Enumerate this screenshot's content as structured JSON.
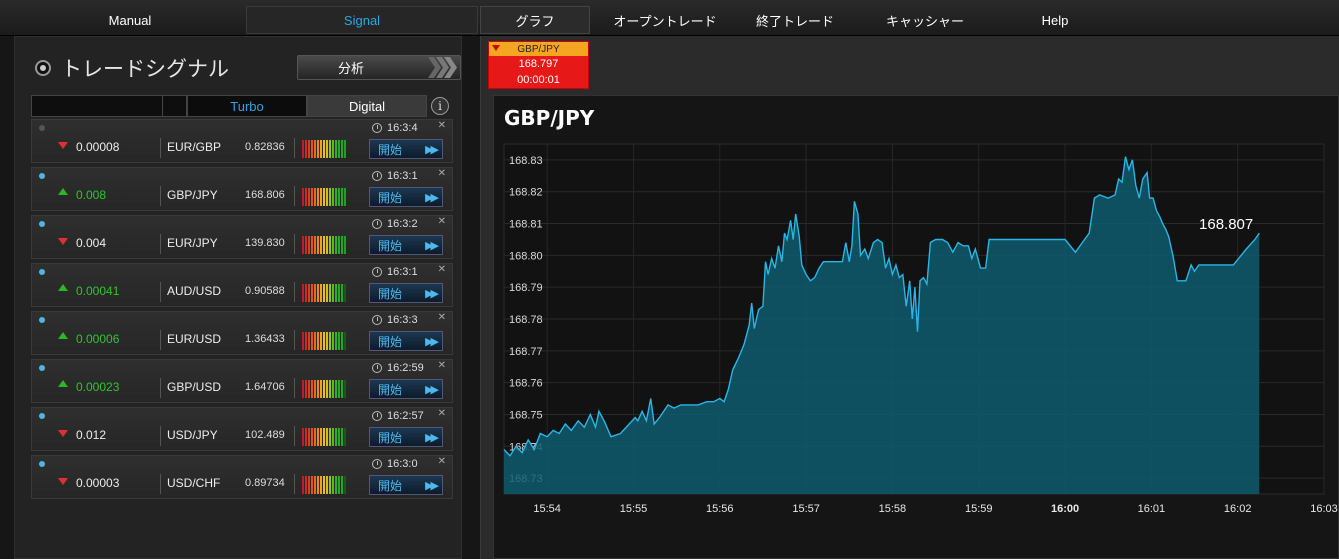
{
  "nav": {
    "tabs": [
      {
        "label": "Manual"
      },
      {
        "label": "Signal"
      },
      {
        "label": "グラフ"
      },
      {
        "label": "オープントレード"
      },
      {
        "label": "終了トレード"
      },
      {
        "label": "キャッシャー"
      },
      {
        "label": "Help"
      }
    ]
  },
  "signals_panel": {
    "title": "トレードシグナル",
    "analyze_label": "分析",
    "filter": {
      "selected": "",
      "turbo_label": "Turbo",
      "digital_label": "Digital",
      "info_icon": "i"
    },
    "start_label": "開始",
    "rows": [
      {
        "active": false,
        "direction": "down",
        "value": "0.00008",
        "pair": "EUR/GBP",
        "price": "0.82836",
        "time": "16:3:4",
        "strength": 5
      },
      {
        "active": true,
        "direction": "up",
        "value": "0.008",
        "pair": "GBP/JPY",
        "price": "168.806",
        "time": "16:3:1",
        "strength": 5
      },
      {
        "active": true,
        "direction": "down",
        "value": "0.004",
        "pair": "EUR/JPY",
        "price": "139.830",
        "time": "16:3:2",
        "strength": 5
      },
      {
        "active": true,
        "direction": "up",
        "value": "0.00041",
        "pair": "AUD/USD",
        "price": "0.90588",
        "time": "16:3:1",
        "strength": 4
      },
      {
        "active": true,
        "direction": "up",
        "value": "0.00006",
        "pair": "EUR/USD",
        "price": "1.36433",
        "time": "16:3:3",
        "strength": 4
      },
      {
        "active": true,
        "direction": "up",
        "value": "0.00023",
        "pair": "GBP/USD",
        "price": "1.64706",
        "time": "16:2:59",
        "strength": 4
      },
      {
        "active": true,
        "direction": "down",
        "value": "0.012",
        "pair": "USD/JPY",
        "price": "102.489",
        "time": "16:2:57",
        "strength": 4
      },
      {
        "active": true,
        "direction": "down",
        "value": "0.00003",
        "pair": "USD/CHF",
        "price": "0.89734",
        "time": "16:3:0",
        "strength": 4
      }
    ]
  },
  "ticker": {
    "pair": "GBP/JPY",
    "price": "168.797",
    "countdown": "00:00:01"
  },
  "colors": {
    "accent": "#29a9e0",
    "up": "#2ec62e",
    "down": "#e03030",
    "series": "#29b6e6",
    "area": "#0e5a6e"
  },
  "chart_data": {
    "type": "area",
    "title": "GBP/JPY",
    "xlabel": "",
    "ylabel": "",
    "grid": true,
    "ylim": [
      168.725,
      168.835
    ],
    "y_ticks": [
      "168.73",
      "168.74",
      "168.75",
      "168.76",
      "168.77",
      "168.78",
      "168.79",
      "168.80",
      "168.81",
      "168.82",
      "168.83"
    ],
    "x_ticks": [
      {
        "label": "15:54",
        "t": 0.5
      },
      {
        "label": "15:55",
        "t": 1.5
      },
      {
        "label": "15:56",
        "t": 2.5
      },
      {
        "label": "15:57",
        "t": 3.5
      },
      {
        "label": "15:58",
        "t": 4.5
      },
      {
        "label": "15:59",
        "t": 5.5
      },
      {
        "label": "16:00",
        "t": 6.5,
        "bold": true
      },
      {
        "label": "16:01",
        "t": 7.5
      },
      {
        "label": "16:02",
        "t": 8.5
      },
      {
        "label": "16:03",
        "t": 9.5
      }
    ],
    "last_value": "168.807",
    "series": [
      {
        "values": [
          [
            0.0,
            168.739
          ],
          [
            0.07,
            168.737
          ],
          [
            0.14,
            168.74
          ],
          [
            0.21,
            168.738
          ],
          [
            0.28,
            168.742
          ],
          [
            0.35,
            168.739
          ],
          [
            0.42,
            168.744
          ],
          [
            0.5,
            168.743
          ],
          [
            0.57,
            168.745
          ],
          [
            0.64,
            168.744
          ],
          [
            0.71,
            168.747
          ],
          [
            0.78,
            168.745
          ],
          [
            0.86,
            168.748
          ],
          [
            0.93,
            168.746
          ],
          [
            1.0,
            168.75
          ],
          [
            1.06,
            168.746
          ],
          [
            1.1,
            168.751
          ],
          [
            1.16,
            168.748
          ],
          [
            1.24,
            168.743
          ],
          [
            1.35,
            168.744
          ],
          [
            1.45,
            168.747
          ],
          [
            1.52,
            168.749
          ],
          [
            1.55,
            168.748
          ],
          [
            1.6,
            168.751
          ],
          [
            1.65,
            168.748
          ],
          [
            1.7,
            168.755
          ],
          [
            1.74,
            168.747
          ],
          [
            1.8,
            168.749
          ],
          [
            1.9,
            168.753
          ],
          [
            1.97,
            168.752
          ],
          [
            2.05,
            168.753
          ],
          [
            2.15,
            168.753
          ],
          [
            2.25,
            168.753
          ],
          [
            2.35,
            168.754
          ],
          [
            2.43,
            168.754
          ],
          [
            2.5,
            168.755
          ],
          [
            2.55,
            168.754
          ],
          [
            2.6,
            168.758
          ],
          [
            2.65,
            168.764
          ],
          [
            2.72,
            168.768
          ],
          [
            2.78,
            168.772
          ],
          [
            2.84,
            168.778
          ],
          [
            2.87,
            168.785
          ],
          [
            2.9,
            168.777
          ],
          [
            2.95,
            168.783
          ],
          [
            3.0,
            168.784
          ],
          [
            3.03,
            168.798
          ],
          [
            3.06,
            168.794
          ],
          [
            3.1,
            168.799
          ],
          [
            3.14,
            168.796
          ],
          [
            3.18,
            168.803
          ],
          [
            3.22,
            168.798
          ],
          [
            3.25,
            168.807
          ],
          [
            3.28,
            168.805
          ],
          [
            3.32,
            168.811
          ],
          [
            3.35,
            168.805
          ],
          [
            3.38,
            168.813
          ],
          [
            3.42,
            168.806
          ],
          [
            3.45,
            168.797
          ],
          [
            3.5,
            168.794
          ],
          [
            3.55,
            168.792
          ],
          [
            3.6,
            168.793
          ],
          [
            3.65,
            168.796
          ],
          [
            3.7,
            168.798
          ],
          [
            3.78,
            168.798
          ],
          [
            3.85,
            168.798
          ],
          [
            3.92,
            168.798
          ],
          [
            3.96,
            168.804
          ],
          [
            4.0,
            168.798
          ],
          [
            4.03,
            168.803
          ],
          [
            4.06,
            168.817
          ],
          [
            4.1,
            168.813
          ],
          [
            4.13,
            168.8
          ],
          [
            4.18,
            168.802
          ],
          [
            4.22,
            168.799
          ],
          [
            4.28,
            168.804
          ],
          [
            4.33,
            168.805
          ],
          [
            4.38,
            168.804
          ],
          [
            4.42,
            168.796
          ],
          [
            4.46,
            168.799
          ],
          [
            4.5,
            168.794
          ],
          [
            4.54,
            168.797
          ],
          [
            4.58,
            168.793
          ],
          [
            4.62,
            168.794
          ],
          [
            4.66,
            168.784
          ],
          [
            4.7,
            168.792
          ],
          [
            4.73,
            168.78
          ],
          [
            4.76,
            168.79
          ],
          [
            4.79,
            168.776
          ],
          [
            4.82,
            168.792
          ],
          [
            4.86,
            168.793
          ],
          [
            4.9,
            168.791
          ],
          [
            4.94,
            168.804
          ],
          [
            5.0,
            168.805
          ],
          [
            5.08,
            168.805
          ],
          [
            5.14,
            168.804
          ],
          [
            5.2,
            168.801
          ],
          [
            5.26,
            168.804
          ],
          [
            5.32,
            168.803
          ],
          [
            5.38,
            168.803
          ],
          [
            5.42,
            168.799
          ],
          [
            5.46,
            168.802
          ],
          [
            5.52,
            168.796
          ],
          [
            5.58,
            168.796
          ],
          [
            5.62,
            168.805
          ],
          [
            5.7,
            168.805
          ],
          [
            5.8,
            168.805
          ],
          [
            5.9,
            168.805
          ],
          [
            6.0,
            168.805
          ],
          [
            6.1,
            168.805
          ],
          [
            6.2,
            168.805
          ],
          [
            6.3,
            168.805
          ],
          [
            6.4,
            168.805
          ],
          [
            6.5,
            168.805
          ],
          [
            6.62,
            168.801
          ],
          [
            6.7,
            168.804
          ],
          [
            6.78,
            168.807
          ],
          [
            6.84,
            168.818
          ],
          [
            6.9,
            168.819
          ],
          [
            7.0,
            168.818
          ],
          [
            7.08,
            168.819
          ],
          [
            7.12,
            168.824
          ],
          [
            7.16,
            168.823
          ],
          [
            7.2,
            168.831
          ],
          [
            7.24,
            168.827
          ],
          [
            7.28,
            168.83
          ],
          [
            7.32,
            168.822
          ],
          [
            7.36,
            168.818
          ],
          [
            7.4,
            168.824
          ],
          [
            7.45,
            168.826
          ],
          [
            7.48,
            168.818
          ],
          [
            7.52,
            168.818
          ],
          [
            7.56,
            168.814
          ],
          [
            7.6,
            168.812
          ],
          [
            7.63,
            168.81
          ],
          [
            7.67,
            168.808
          ],
          [
            7.7,
            168.806
          ],
          [
            7.75,
            168.8
          ],
          [
            7.8,
            168.792
          ],
          [
            7.9,
            168.792
          ],
          [
            7.96,
            168.797
          ],
          [
            8.0,
            168.795
          ],
          [
            8.05,
            168.797
          ],
          [
            8.2,
            168.797
          ],
          [
            8.35,
            168.797
          ],
          [
            8.45,
            168.797
          ],
          [
            8.6,
            168.802
          ],
          [
            8.7,
            168.805
          ],
          [
            8.75,
            168.807
          ]
        ]
      }
    ]
  }
}
